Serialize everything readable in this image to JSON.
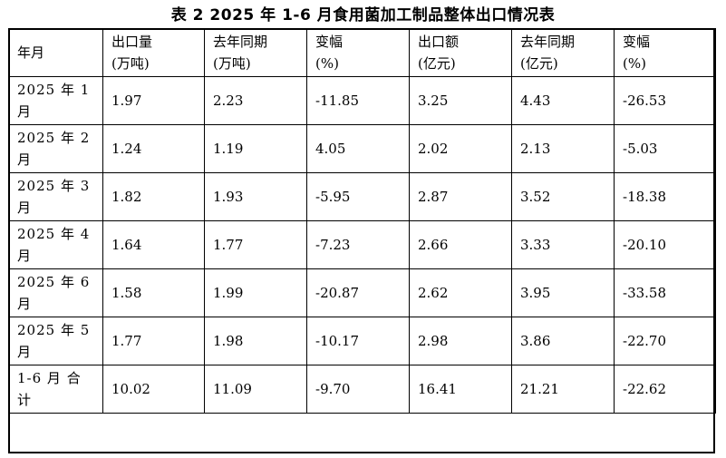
{
  "title": "表 2  2025 年 1-6 月食用菌加工制品整体出口情况表",
  "headers": [
    {
      "line1": "年月",
      "line2": ""
    },
    {
      "line1": "出口量",
      "line2": "(万吨)"
    },
    {
      "line1": "去年同期",
      "line2": "(万吨)"
    },
    {
      "line1": "变幅",
      "line2": "(%)"
    },
    {
      "line1": "出口额",
      "line2": "(亿元)"
    },
    {
      "line1": "去年同期",
      "line2": "(亿元)"
    },
    {
      "line1": "变幅",
      "line2": "(%)"
    }
  ],
  "rows": [
    {
      "period": "2025 年 1 月",
      "volume": "1.97",
      "volume_prev": "2.23",
      "volume_change": "-11.85",
      "value": "3.25",
      "value_prev": "4.43",
      "value_change": "-26.53"
    },
    {
      "period": "2025 年 2 月",
      "volume": "1.24",
      "volume_prev": "1.19",
      "volume_change": "4.05",
      "value": "2.02",
      "value_prev": "2.13",
      "value_change": "-5.03"
    },
    {
      "period": "2025 年 3 月",
      "volume": "1.82",
      "volume_prev": "1.93",
      "volume_change": "-5.95",
      "value": "2.87",
      "value_prev": "3.52",
      "value_change": "-18.38"
    },
    {
      "period": "2025 年 4 月",
      "volume": "1.64",
      "volume_prev": "1.77",
      "volume_change": "-7.23",
      "value": "2.66",
      "value_prev": "3.33",
      "value_change": "-20.10"
    },
    {
      "period": "2025 年 6 月",
      "volume": "1.58",
      "volume_prev": "1.99",
      "volume_change": "-20.87",
      "value": "2.62",
      "value_prev": "3.95",
      "value_change": "-33.58"
    },
    {
      "period": "2025 年 5 月",
      "volume": "1.77",
      "volume_prev": "1.98",
      "volume_change": "-10.17",
      "value": "2.98",
      "value_prev": "3.86",
      "value_change": "-22.70"
    },
    {
      "period": "1-6 月 合 计",
      "volume": "10.02",
      "volume_prev": "11.09",
      "volume_change": "-9.70",
      "value": "16.41",
      "value_prev": "21.21",
      "value_change": "-22.62"
    }
  ]
}
